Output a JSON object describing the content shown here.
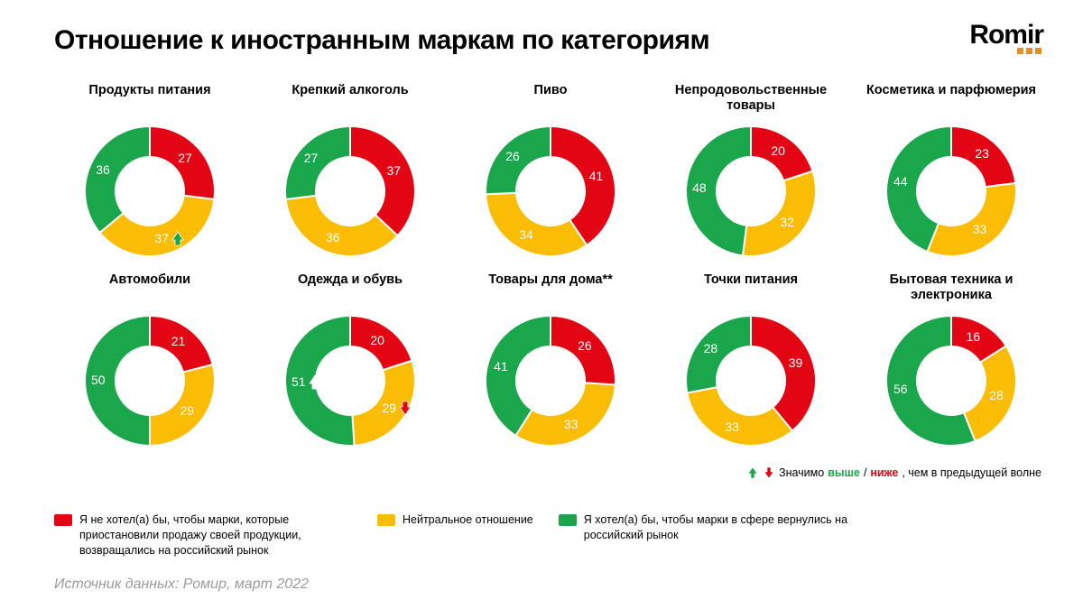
{
  "title": "Отношение к иностранным маркам по категориям",
  "logo_text": "Romir",
  "source": "Источник данных: Ромир, март 2022",
  "colors": {
    "red": "#e30513",
    "yellow": "#fbbc04",
    "green": "#1aa64a",
    "label_text": "#ffffff",
    "title_text": "#000000",
    "source_text": "#9b9b9b",
    "logo_accent": "#ec8b1f"
  },
  "chart_style": {
    "type": "donut",
    "outer_radius": 72,
    "inner_radius": 38,
    "value_label_fontsize": 14,
    "value_label_color": "#ffffff",
    "title_fontsize": 14.5,
    "start_angle_deg": -90
  },
  "legend": {
    "red": "Я не хотел(а) бы, чтобы марки, которые приостановили продажу своей продукции, возвращались на российский рынок",
    "yellow": "Нейтральное отношение",
    "green": "Я хотел(а) бы, чтобы марки в сфере вернулись на российский рынок"
  },
  "significance_note": {
    "prefix": "Значимо ",
    "up_word": "выше",
    "sep": " / ",
    "down_word": "ниже",
    "suffix": ", чем в предыдущей волне"
  },
  "categories": [
    {
      "title": "Продукты питания",
      "red": 27,
      "yellow": 37,
      "green": 36,
      "arrows": [
        {
          "segment": "yellow",
          "dir": "up",
          "color": "#1aa64a"
        }
      ]
    },
    {
      "title": "Крепкий алкоголь",
      "red": 37,
      "yellow": 36,
      "green": 27,
      "arrows": []
    },
    {
      "title": "Пиво",
      "red": 41,
      "yellow": 34,
      "green": 26,
      "arrows": []
    },
    {
      "title": "Непродовольственные товары",
      "red": 20,
      "yellow": 32,
      "green": 48,
      "arrows": []
    },
    {
      "title": "Косметика и парфюмерия",
      "red": 23,
      "yellow": 33,
      "green": 44,
      "arrows": []
    },
    {
      "title": "Автомобили",
      "red": 21,
      "yellow": 29,
      "green": 50,
      "arrows": []
    },
    {
      "title": "Одежда и обувь",
      "red": 20,
      "yellow": 29,
      "green": 51,
      "arrows": [
        {
          "segment": "yellow",
          "dir": "down",
          "color": "#e30513"
        },
        {
          "segment": "green",
          "dir": "up",
          "color": "#ffffff"
        }
      ]
    },
    {
      "title": "Товары для дома**",
      "red": 26,
      "yellow": 33,
      "green": 41,
      "arrows": []
    },
    {
      "title": "Точки питания",
      "red": 39,
      "yellow": 33,
      "green": 28,
      "arrows": []
    },
    {
      "title": "Бытовая техника и электроника",
      "red": 16,
      "yellow": 28,
      "green": 56,
      "arrows": []
    }
  ]
}
